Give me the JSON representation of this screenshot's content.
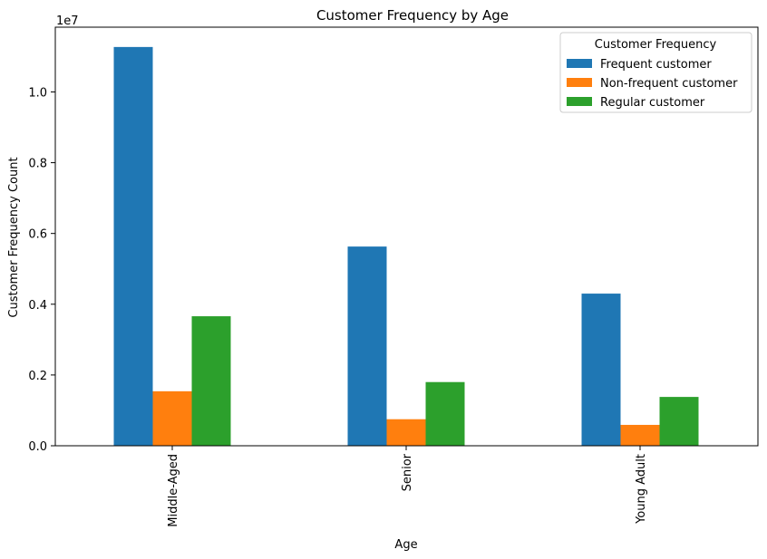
{
  "chart_data": {
    "type": "bar",
    "title": "Customer Frequency by Age",
    "xlabel": "Age",
    "ylabel": "Customer Frequency Count",
    "offset_label": "1e7",
    "categories": [
      "Middle-Aged",
      "Senior",
      "Young Adult"
    ],
    "series": [
      {
        "name": "Frequent customer",
        "color": "#1f77b4",
        "values": [
          11270000,
          5630000,
          4300000
        ]
      },
      {
        "name": "Non-frequent customer",
        "color": "#ff7f0e",
        "values": [
          1540000,
          750000,
          590000
        ]
      },
      {
        "name": "Regular customer",
        "color": "#2ca02c",
        "values": [
          3660000,
          1800000,
          1380000
        ]
      }
    ],
    "ylim": [
      0,
      11830000
    ],
    "yticks": [
      0,
      2000000,
      4000000,
      6000000,
      8000000,
      10000000
    ],
    "ytick_labels": [
      "0.0",
      "0.2",
      "0.4",
      "0.6",
      "0.8",
      "1.0"
    ],
    "legend_title": "Customer Frequency",
    "legend_position": "top-right",
    "grid": false
  }
}
